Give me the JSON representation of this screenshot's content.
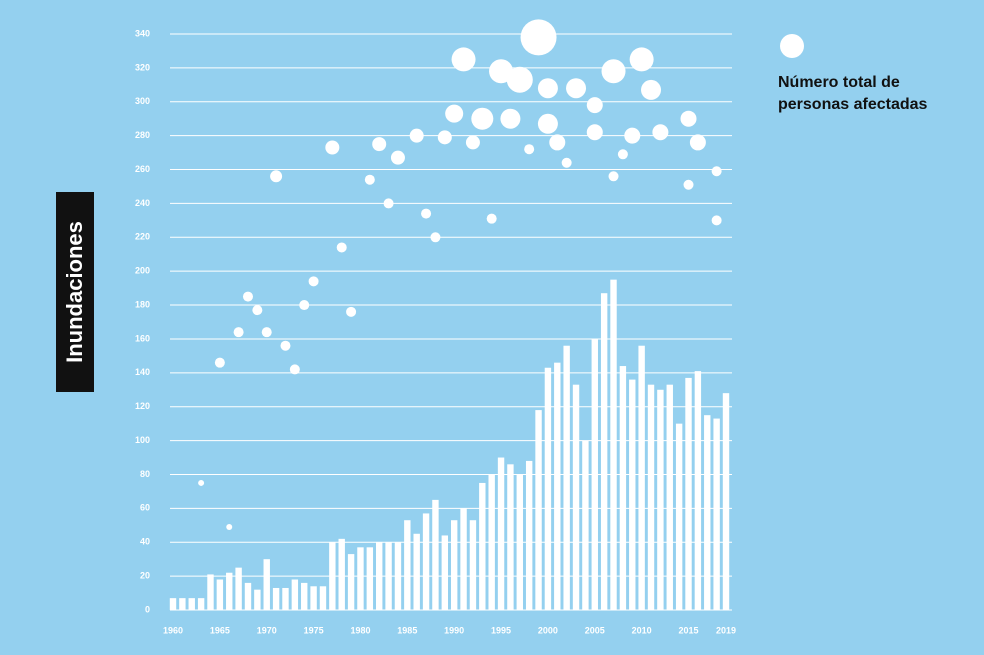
{
  "chart_data": {
    "type": "bar",
    "y_label": "Inundaciones",
    "color": "#ffffff",
    "x": [
      1960,
      1961,
      1962,
      1963,
      1964,
      1965,
      1966,
      1967,
      1968,
      1969,
      1970,
      1971,
      1972,
      1973,
      1974,
      1975,
      1976,
      1977,
      1978,
      1979,
      1980,
      1981,
      1982,
      1983,
      1984,
      1985,
      1986,
      1987,
      1988,
      1989,
      1990,
      1991,
      1992,
      1993,
      1994,
      1995,
      1996,
      1997,
      1998,
      1999,
      2000,
      2001,
      2002,
      2003,
      2004,
      2005,
      2006,
      2007,
      2008,
      2009,
      2010,
      2011,
      2012,
      2013,
      2014,
      2015,
      2016,
      2017,
      2018,
      2019
    ],
    "values": [
      7,
      7,
      7,
      7,
      21,
      18,
      22,
      25,
      16,
      12,
      30,
      13,
      13,
      18,
      16,
      14,
      14,
      40,
      42,
      33,
      37,
      37,
      40,
      40,
      40,
      53,
      45,
      57,
      65,
      44,
      53,
      60,
      53,
      75,
      80,
      90,
      86,
      80,
      88,
      118,
      143,
      146,
      156,
      133,
      100,
      160,
      187,
      195,
      144,
      136,
      156,
      133,
      130,
      133,
      110,
      137,
      141,
      115,
      113,
      128
    ],
    "bubbles": {
      "type": "scatter",
      "name": "Número total de personas afectadas",
      "color": "#ffffff",
      "x": [
        1963,
        1966,
        1965,
        1967,
        1968,
        1969,
        1970,
        1971,
        1972,
        1973,
        1974,
        1975,
        1977,
        1978,
        1979,
        1981,
        1982,
        1983,
        1984,
        1986,
        1987,
        1988,
        1989,
        1990,
        1991,
        1992,
        1993,
        1994,
        1995,
        1996,
        1997,
        1998,
        1999,
        2000,
        2000,
        2001,
        2002,
        2003,
        2005,
        2005,
        2007,
        2007,
        2008,
        2009,
        2010,
        2011,
        2012,
        2015,
        2015,
        2016,
        2018,
        2018
      ],
      "y": [
        75,
        49,
        146,
        164,
        185,
        177,
        164,
        256,
        156,
        142,
        180,
        194,
        273,
        214,
        176,
        254,
        275,
        240,
        267,
        280,
        234,
        220,
        279,
        293,
        325,
        276,
        290,
        231,
        318,
        290,
        313,
        272,
        338,
        308,
        287,
        276,
        264,
        308,
        298,
        282,
        256,
        318,
        269,
        280,
        325,
        307,
        282,
        251,
        290,
        276,
        259,
        230
      ],
      "sizes": [
        3,
        3,
        5,
        5,
        5,
        5,
        5,
        6,
        5,
        5,
        5,
        5,
        7,
        5,
        5,
        5,
        7,
        5,
        7,
        7,
        5,
        5,
        7,
        9,
        12,
        7,
        11,
        5,
        12,
        10,
        13,
        5,
        18,
        10,
        10,
        8,
        5,
        10,
        8,
        8,
        5,
        12,
        5,
        8,
        12,
        10,
        8,
        5,
        8,
        8,
        5,
        5
      ],
      "legend_size": 12
    },
    "xlim": [
      1960,
      2019
    ],
    "ylim": [
      0,
      340
    ],
    "xticks": [
      1960,
      1965,
      1970,
      1975,
      1980,
      1985,
      1990,
      1995,
      2000,
      2005,
      2010,
      2015,
      2019
    ],
    "yticks": [
      0,
      20,
      40,
      60,
      80,
      100,
      120,
      140,
      160,
      180,
      200,
      220,
      240,
      260,
      280,
      300,
      320,
      340
    ],
    "grid": true
  }
}
